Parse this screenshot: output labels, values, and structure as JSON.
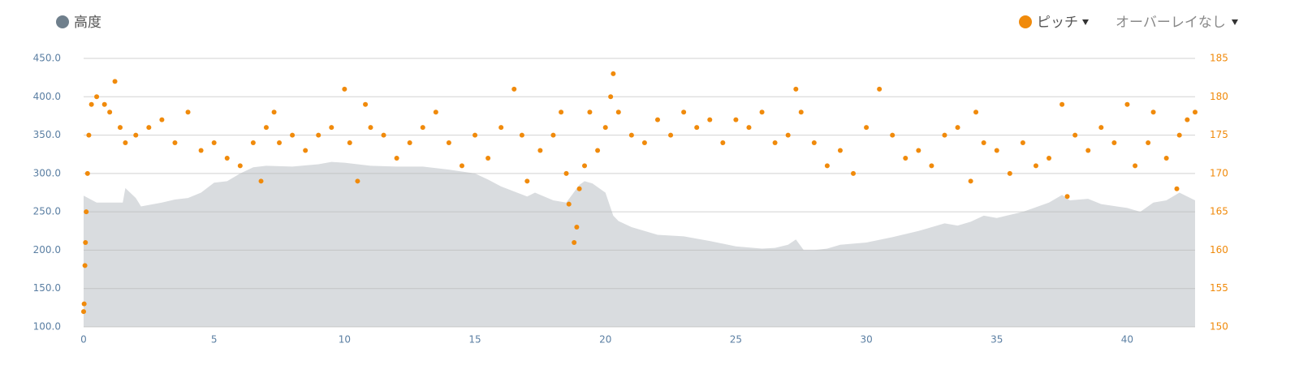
{
  "chart_data": {
    "type": "combo",
    "xlim": [
      0,
      42.6
    ],
    "xticks": [
      0,
      5,
      10,
      15,
      20,
      25,
      30,
      35,
      40
    ],
    "ylim": [
      100,
      450
    ],
    "yticks": [
      {
        "value": 100,
        "label": "100.0"
      },
      {
        "value": 150,
        "label": "150.0"
      },
      {
        "value": 200,
        "label": "200.0"
      },
      {
        "value": 250,
        "label": "250.0"
      },
      {
        "value": 300,
        "label": "300.0"
      },
      {
        "value": 350,
        "label": "350.0"
      },
      {
        "value": 400,
        "label": "400.0"
      },
      {
        "value": 450,
        "label": "450.0"
      }
    ],
    "y2lim": [
      150,
      185
    ],
    "y2ticks": [
      150,
      155,
      160,
      165,
      170,
      175,
      180,
      185
    ],
    "grid": true,
    "overlay_control": "オーバーレイなし",
    "series": [
      {
        "name": "高度",
        "type": "area",
        "color": "#d9dcdf",
        "legend_color": "#6f7f8c",
        "x": [
          0,
          0.5,
          1,
          1.5,
          1.6,
          2,
          2.2,
          3,
          3.5,
          4,
          4.5,
          5,
          5.5,
          6,
          6.5,
          7,
          8,
          9,
          9.5,
          10,
          11,
          12,
          13,
          14,
          15,
          15.5,
          16,
          17,
          17.3,
          18,
          18.5,
          19,
          19.2,
          19.5,
          20,
          20.3,
          20.5,
          21,
          21.5,
          22,
          23,
          24,
          25,
          26,
          26.5,
          27,
          27.3,
          27.6,
          28,
          28.5,
          29,
          30,
          31,
          32,
          33,
          33.5,
          34,
          34.5,
          35,
          36,
          37,
          37.5,
          37.8,
          38.5,
          39,
          40,
          40.5,
          41,
          41.5,
          42,
          42.6
        ],
        "values": [
          271,
          262,
          262,
          262,
          281,
          268,
          257,
          262,
          266,
          268,
          275,
          288,
          290,
          300,
          308,
          310,
          309,
          312,
          315,
          314,
          310,
          309,
          309,
          305,
          300,
          292,
          283,
          270,
          275,
          265,
          262,
          285,
          290,
          287,
          275,
          245,
          238,
          230,
          225,
          220,
          218,
          212,
          205,
          202,
          203,
          207,
          214,
          200,
          200,
          202,
          207,
          210,
          217,
          225,
          235,
          232,
          237,
          245,
          242,
          250,
          262,
          272,
          265,
          267,
          260,
          255,
          250,
          262,
          265,
          275,
          265
        ]
      },
      {
        "name": "ピッチ",
        "type": "scatter",
        "axis": "y2",
        "color": "#f08a0b",
        "x": [
          0,
          0.02,
          0.05,
          0.07,
          0.1,
          0.15,
          0.2,
          0.3,
          0.5,
          0.8,
          1.0,
          1.2,
          1.4,
          1.6,
          2,
          2.5,
          3,
          3.5,
          4,
          4.5,
          5,
          5.5,
          6,
          6.5,
          6.8,
          7,
          7.3,
          7.5,
          8,
          8.5,
          9,
          9.5,
          10,
          10.2,
          10.5,
          10.8,
          11,
          11.5,
          12,
          12.5,
          13,
          13.5,
          14,
          14.5,
          15,
          15.5,
          16,
          16.5,
          16.8,
          17,
          17.5,
          18,
          18.3,
          18.5,
          18.6,
          18.8,
          18.9,
          19,
          19.2,
          19.4,
          19.7,
          20,
          20.2,
          20.3,
          20.5,
          21,
          21.5,
          22,
          22.5,
          23,
          23.5,
          24,
          24.5,
          25,
          25.5,
          26,
          26.5,
          27,
          27.3,
          27.5,
          28,
          28.5,
          29,
          29.5,
          30,
          30.5,
          31,
          31.5,
          32,
          32.5,
          33,
          33.5,
          34,
          34.2,
          34.5,
          35,
          35.5,
          36,
          36.5,
          37,
          37.5,
          37.7,
          38,
          38.5,
          39,
          39.5,
          40,
          40.3,
          40.8,
          41,
          41.5,
          41.9,
          42,
          42.3,
          42.6
        ],
        "values": [
          152,
          153,
          158,
          161,
          165,
          170,
          175,
          179,
          180,
          179,
          178,
          182,
          176,
          174,
          175,
          176,
          177,
          174,
          178,
          173,
          174,
          172,
          171,
          174,
          169,
          176,
          178,
          174,
          175,
          173,
          175,
          176,
          181,
          174,
          169,
          179,
          176,
          175,
          172,
          174,
          176,
          178,
          174,
          171,
          175,
          172,
          176,
          181,
          175,
          169,
          173,
          175,
          178,
          170,
          166,
          161,
          163,
          168,
          171,
          178,
          173,
          176,
          180,
          183,
          178,
          175,
          174,
          177,
          175,
          178,
          176,
          177,
          174,
          177,
          176,
          178,
          174,
          175,
          181,
          178,
          174,
          171,
          173,
          170,
          176,
          181,
          175,
          172,
          173,
          171,
          175,
          176,
          169,
          178,
          174,
          173,
          170,
          174,
          171,
          172,
          179,
          167,
          175,
          173,
          176,
          174,
          179,
          171,
          174,
          178,
          172,
          168,
          175,
          177,
          178
        ]
      }
    ]
  }
}
